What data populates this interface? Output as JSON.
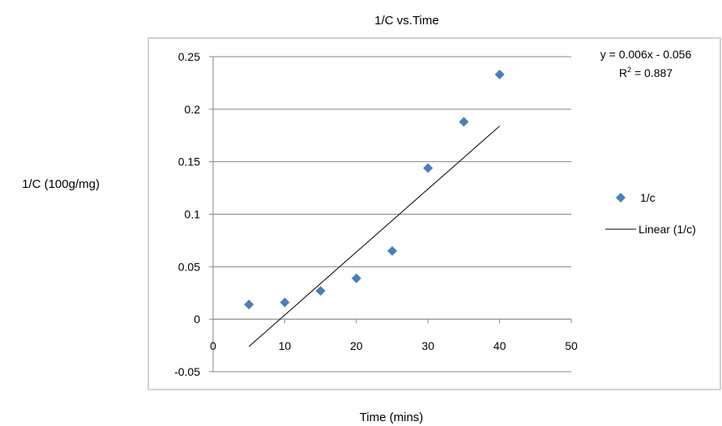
{
  "chart_data": {
    "type": "scatter",
    "title": "1/C vs.Time",
    "xlabel": "Time (mins)",
    "ylabel": "1/C (100g/mg)",
    "xlim": [
      0,
      50
    ],
    "ylim": [
      -0.05,
      0.25
    ],
    "x_ticks": [
      "0",
      "10",
      "20",
      "30",
      "40",
      "50"
    ],
    "y_ticks": [
      "-0.05",
      "0",
      "0.05",
      "0.1",
      "0.15",
      "0.2",
      "0.25"
    ],
    "grid": "horizontal",
    "legend_position": "right",
    "series": [
      {
        "name": "1/c",
        "marker": "diamond",
        "color": "#4a7ebb",
        "x": [
          5,
          10,
          15,
          20,
          25,
          30,
          35,
          40
        ],
        "y": [
          0.014,
          0.016,
          0.027,
          0.039,
          0.065,
          0.144,
          0.188,
          0.233
        ]
      }
    ],
    "trendline": {
      "name": "Linear (1/c)",
      "type": "linear",
      "slope": 0.006,
      "intercept": -0.056,
      "x_range": [
        5,
        40
      ],
      "color": "#000000",
      "equation_label": "y = 0.006x - 0.056",
      "r2_label_prefix": "R",
      "r2_label_sup": "2",
      "r2_label_value": " = 0.887"
    }
  }
}
